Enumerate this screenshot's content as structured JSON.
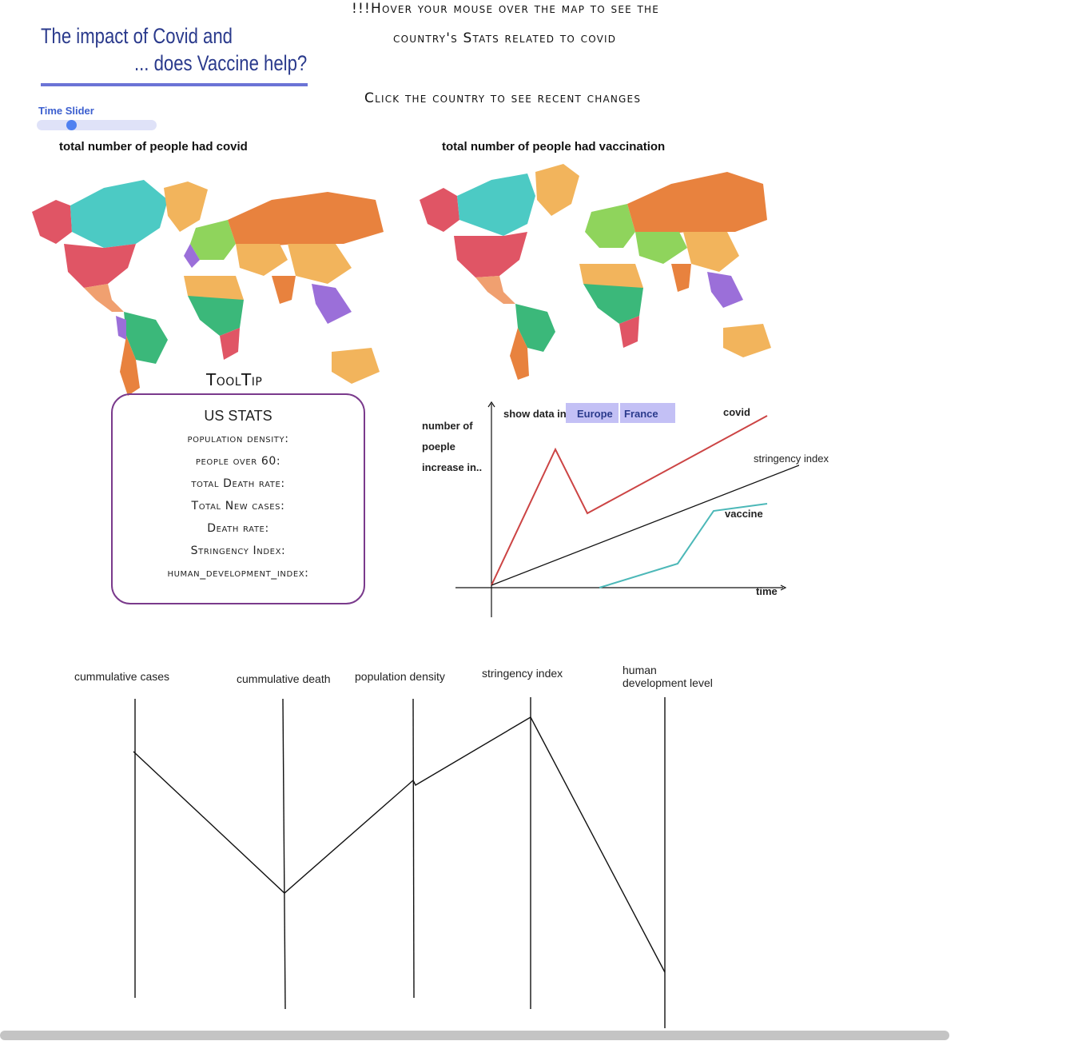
{
  "header": {
    "title_line1": "The impact of Covid and",
    "title_line2": "... does Vaccine help?",
    "slider_label": "Time Slider",
    "slider_value": 0.27,
    "instruction_line1": "!!!Hover your mouse over the map to see the",
    "instruction_line2": "country's Stats related to covid",
    "instruction_line3": "Click the country to see recent changes"
  },
  "maps": {
    "left_label": "total number of people had covid",
    "right_label": "total number of people had vaccination"
  },
  "tooltip": {
    "heading": "ToolTip",
    "title": "US STATS",
    "fields": [
      "population density:",
      "people over 60:",
      "total Death rate:",
      "Total New cases:",
      "Death rate:",
      "Stringency Index:",
      "human_development_index:"
    ]
  },
  "line_chart": {
    "ylabel_lines": [
      "number of",
      "poeple",
      "increase in.."
    ],
    "filter_label": "show data in",
    "buttons": [
      "Europe",
      "France"
    ],
    "series_labels": {
      "covid": "covid",
      "stringency": "stringency index",
      "vaccine": "vaccine"
    },
    "xlabel": "time",
    "colors": {
      "covid": "#cc4444",
      "stringency": "#111111",
      "vaccine": "#4cb8b8"
    }
  },
  "parallel": {
    "axes": [
      "cummulative cases",
      "cummulative death",
      "population density",
      "stringency index",
      "human development level"
    ]
  }
}
